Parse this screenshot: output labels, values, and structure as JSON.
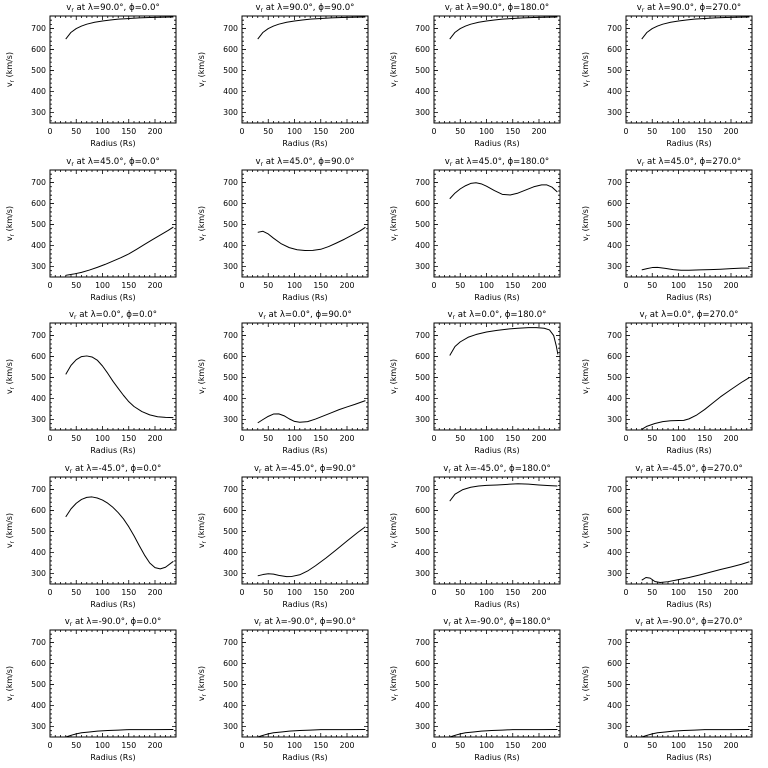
{
  "page": {
    "background": "#ffffff",
    "line_color": "#000000"
  },
  "chart_data": {
    "type": "line",
    "grid": false,
    "legend": "none",
    "axes": {
      "xlabel": "Radius (Rs)",
      "ylabel_v": "v",
      "ylabel_sub": "r",
      "ylabel_rest": " (km/s)",
      "title_v": "v",
      "title_sub": "r",
      "xlim": [
        0,
        240
      ],
      "ylim": [
        250,
        760
      ],
      "xticks": [
        0,
        50,
        100,
        150,
        200
      ],
      "yticks": [
        300,
        400,
        500,
        600,
        700
      ],
      "xmajor": 50,
      "ymajor": 100,
      "xminor": 10,
      "yminor": 20
    },
    "plots": [
      {
        "lambda": "90.0",
        "phi": "0.0",
        "title_rest": " at λ=90.0°, ϕ=0.0°",
        "x": [
          30,
          40,
          50,
          60,
          70,
          85,
          100,
          115,
          130,
          150,
          170,
          190,
          210,
          235
        ],
        "y": [
          650,
          682,
          700,
          712,
          721,
          730,
          736,
          741,
          745,
          748,
          751,
          753,
          754,
          755
        ]
      },
      {
        "lambda": "90.0",
        "phi": "90.0",
        "title_rest": " at λ=90.0°, ϕ=90.0°",
        "x": [
          30,
          40,
          50,
          60,
          70,
          85,
          100,
          115,
          130,
          150,
          170,
          190,
          210,
          235
        ],
        "y": [
          650,
          682,
          700,
          712,
          721,
          730,
          736,
          741,
          745,
          748,
          751,
          753,
          754,
          755
        ]
      },
      {
        "lambda": "90.0",
        "phi": "180.0",
        "title_rest": " at λ=90.0°, ϕ=180.0°",
        "x": [
          30,
          40,
          50,
          60,
          70,
          85,
          100,
          115,
          130,
          150,
          170,
          190,
          210,
          235
        ],
        "y": [
          650,
          682,
          700,
          712,
          721,
          730,
          736,
          741,
          745,
          748,
          751,
          753,
          754,
          755
        ]
      },
      {
        "lambda": "90.0",
        "phi": "270.0",
        "title_rest": " at λ=90.0°, ϕ=270.0°",
        "x": [
          30,
          40,
          50,
          60,
          70,
          85,
          100,
          115,
          130,
          150,
          170,
          190,
          210,
          235
        ],
        "y": [
          650,
          682,
          700,
          712,
          721,
          730,
          736,
          741,
          745,
          748,
          751,
          753,
          754,
          755
        ]
      },
      {
        "lambda": "45.0",
        "phi": "0.0",
        "title_rest": " at λ=45.0°, ϕ=0.0°",
        "x": [
          30,
          45,
          60,
          75,
          90,
          105,
          120,
          135,
          150,
          165,
          180,
          195,
          210,
          225,
          235
        ],
        "y": [
          258,
          264,
          272,
          283,
          296,
          310,
          326,
          342,
          360,
          382,
          405,
          428,
          450,
          472,
          488
        ]
      },
      {
        "lambda": "45.0",
        "phi": "90.0",
        "title_rest": " at λ=45.0°, ϕ=90.0°",
        "x": [
          30,
          40,
          50,
          60,
          75,
          90,
          105,
          120,
          135,
          150,
          165,
          180,
          195,
          210,
          225,
          235
        ],
        "y": [
          463,
          468,
          455,
          435,
          408,
          390,
          380,
          376,
          377,
          382,
          395,
          412,
          430,
          450,
          470,
          487
        ]
      },
      {
        "lambda": "45.0",
        "phi": "180.0",
        "title_rest": " at λ=45.0°, ϕ=180.0°",
        "x": [
          30,
          40,
          50,
          60,
          70,
          80,
          90,
          100,
          115,
          130,
          145,
          160,
          175,
          190,
          205,
          215,
          225,
          235
        ],
        "y": [
          623,
          650,
          670,
          685,
          696,
          699,
          694,
          683,
          662,
          644,
          641,
          650,
          665,
          680,
          689,
          689,
          678,
          655
        ]
      },
      {
        "lambda": "45.0",
        "phi": "270.0",
        "title_rest": " at λ=45.0°, ϕ=270.0°",
        "x": [
          30,
          40,
          50,
          60,
          75,
          90,
          105,
          120,
          140,
          160,
          180,
          200,
          220,
          235
        ],
        "y": [
          284,
          290,
          295,
          296,
          291,
          285,
          282,
          282,
          284,
          285,
          287,
          290,
          292,
          292
        ]
      },
      {
        "lambda": "0.0",
        "phi": "0.0",
        "title_rest": " at λ=0.0°, ϕ=0.0°",
        "x": [
          30,
          40,
          50,
          60,
          70,
          80,
          90,
          100,
          110,
          120,
          130,
          140,
          150,
          160,
          175,
          190,
          205,
          220,
          235
        ],
        "y": [
          515,
          558,
          585,
          600,
          603,
          598,
          583,
          555,
          520,
          482,
          448,
          415,
          385,
          362,
          338,
          322,
          313,
          310,
          309
        ]
      },
      {
        "lambda": "0.0",
        "phi": "90.0",
        "title_rest": " at λ=0.0°, ϕ=90.0°",
        "x": [
          30,
          40,
          50,
          60,
          70,
          80,
          90,
          100,
          110,
          125,
          140,
          155,
          170,
          185,
          200,
          215,
          235
        ],
        "y": [
          284,
          300,
          315,
          326,
          327,
          318,
          303,
          291,
          287,
          290,
          302,
          317,
          332,
          347,
          360,
          372,
          390
        ]
      },
      {
        "lambda": "0.0",
        "phi": "180.0",
        "title_rest": " at λ=0.0°, ϕ=180.0°",
        "x": [
          30,
          40,
          50,
          65,
          80,
          100,
          120,
          140,
          160,
          180,
          195,
          210,
          220,
          228,
          233,
          236
        ],
        "y": [
          605,
          648,
          670,
          692,
          705,
          717,
          725,
          731,
          735,
          738,
          738,
          735,
          727,
          700,
          650,
          610
        ]
      },
      {
        "lambda": "0.0",
        "phi": "270.0",
        "title_rest": " at λ=0.0°, ϕ=270.0°",
        "x": [
          30,
          40,
          55,
          70,
          85,
          100,
          110,
          120,
          135,
          150,
          165,
          180,
          200,
          220,
          235
        ],
        "y": [
          253,
          268,
          281,
          290,
          294,
          295,
          296,
          303,
          322,
          348,
          378,
          408,
          443,
          477,
          500
        ]
      },
      {
        "lambda": "-45.0",
        "phi": "0.0",
        "title_rest": " at λ=-45.0°, ϕ=0.0°",
        "x": [
          30,
          40,
          50,
          60,
          70,
          80,
          90,
          100,
          110,
          120,
          130,
          140,
          150,
          160,
          170,
          180,
          190,
          200,
          210,
          220,
          235
        ],
        "y": [
          570,
          608,
          635,
          653,
          663,
          665,
          660,
          650,
          635,
          615,
          590,
          560,
          523,
          480,
          433,
          388,
          350,
          328,
          322,
          330,
          358
        ]
      },
      {
        "lambda": "-45.0",
        "phi": "90.0",
        "title_rest": " at λ=-45.0°, ϕ=90.0°",
        "x": [
          30,
          40,
          50,
          60,
          70,
          85,
          95,
          110,
          125,
          140,
          160,
          180,
          200,
          220,
          235
        ],
        "y": [
          289,
          295,
          299,
          297,
          291,
          285,
          286,
          294,
          312,
          337,
          374,
          414,
          455,
          495,
          523
        ]
      },
      {
        "lambda": "-45.0",
        "phi": "180.0",
        "title_rest": " at λ=-45.0°, ϕ=180.0°",
        "x": [
          30,
          40,
          55,
          70,
          85,
          100,
          120,
          140,
          160,
          180,
          200,
          220,
          235
        ],
        "y": [
          645,
          678,
          700,
          711,
          717,
          720,
          722,
          725,
          728,
          726,
          722,
          719,
          717
        ]
      },
      {
        "lambda": "-45.0",
        "phi": "270.0",
        "title_rest": " at λ=-45.0°, ϕ=270.0°",
        "x": [
          30,
          38,
          46,
          55,
          65,
          80,
          100,
          120,
          140,
          160,
          180,
          200,
          220,
          235
        ],
        "y": [
          268,
          281,
          278,
          262,
          257,
          261,
          271,
          281,
          293,
          306,
          319,
          331,
          344,
          356
        ]
      },
      {
        "lambda": "-90.0",
        "phi": "0.0",
        "title_rest": " at λ=-90.0°, ϕ=0.0°",
        "x": [
          30,
          40,
          50,
          60,
          75,
          90,
          110,
          130,
          150,
          175,
          200,
          235
        ],
        "y": [
          250,
          258,
          265,
          270,
          274,
          278,
          281,
          283,
          285,
          285,
          285,
          286
        ]
      },
      {
        "lambda": "-90.0",
        "phi": "90.0",
        "title_rest": " at λ=-90.0°, ϕ=90.0°",
        "x": [
          30,
          40,
          50,
          60,
          75,
          90,
          110,
          130,
          150,
          175,
          200,
          235
        ],
        "y": [
          250,
          258,
          265,
          270,
          274,
          278,
          281,
          283,
          285,
          285,
          285,
          286
        ]
      },
      {
        "lambda": "-90.0",
        "phi": "180.0",
        "title_rest": " at λ=-90.0°, ϕ=180.0°",
        "x": [
          30,
          40,
          50,
          60,
          75,
          90,
          110,
          130,
          150,
          175,
          200,
          235
        ],
        "y": [
          250,
          258,
          265,
          270,
          274,
          278,
          281,
          283,
          285,
          285,
          285,
          286
        ]
      },
      {
        "lambda": "-90.0",
        "phi": "270.0",
        "title_rest": " at λ=-90.0°, ϕ=270.0°",
        "x": [
          30,
          40,
          50,
          60,
          75,
          90,
          110,
          130,
          150,
          175,
          200,
          235
        ],
        "y": [
          250,
          258,
          265,
          270,
          274,
          278,
          281,
          283,
          285,
          285,
          285,
          286
        ]
      }
    ]
  }
}
